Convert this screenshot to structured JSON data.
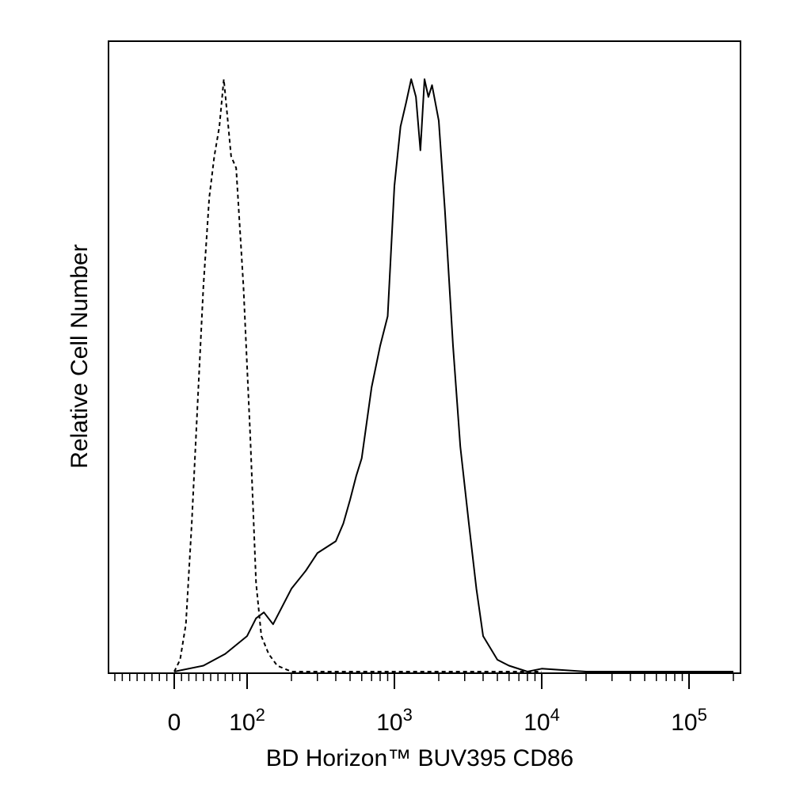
{
  "chart_data": {
    "type": "line",
    "xlabel": "BD Horizon™ BUV395 CD86",
    "ylabel": "Relative Cell Number",
    "x_scale": "biexponential",
    "xlim": [
      -40,
      200000
    ],
    "ylim": [
      0,
      100
    ],
    "grid": false,
    "tick_labels": [
      {
        "value": 0,
        "base": "0",
        "exp": ""
      },
      {
        "value": 100,
        "base": "10",
        "exp": "2"
      },
      {
        "value": 1000,
        "base": "10",
        "exp": "3"
      },
      {
        "value": 10000,
        "base": "10",
        "exp": "4"
      },
      {
        "value": 100000,
        "base": "10",
        "exp": "5"
      }
    ],
    "series": [
      {
        "style": "dashed",
        "x": [
          0,
          8,
          16,
          24,
          32,
          40,
          48,
          55,
          62,
          68,
          72,
          78,
          85,
          95,
          105,
          115,
          125,
          140,
          160,
          200,
          300,
          1000,
          10000
        ],
        "y": [
          0,
          2,
          8,
          25,
          45,
          65,
          80,
          87,
          92,
          100,
          95,
          87,
          85,
          65,
          40,
          15,
          6,
          3,
          1,
          0,
          0,
          0,
          0
        ]
      },
      {
        "style": "solid",
        "x": [
          0,
          40,
          70,
          100,
          115,
          130,
          150,
          200,
          250,
          300,
          400,
          450,
          500,
          550,
          600,
          700,
          800,
          900,
          1000,
          1100,
          1200,
          1300,
          1400,
          1500,
          1600,
          1700,
          1800,
          2000,
          2200,
          2500,
          2800,
          3200,
          3600,
          4000,
          5000,
          6000,
          8000,
          10000,
          20000,
          100000,
          200000
        ],
        "y": [
          0,
          1,
          3,
          6,
          9,
          10,
          8,
          14,
          17,
          20,
          22,
          25,
          29,
          33,
          36,
          48,
          55,
          60,
          82,
          92,
          96,
          100,
          97,
          88,
          100,
          97,
          99,
          93,
          78,
          55,
          38,
          25,
          14,
          6,
          2,
          1,
          0,
          0.5,
          0,
          0,
          0
        ]
      }
    ]
  }
}
